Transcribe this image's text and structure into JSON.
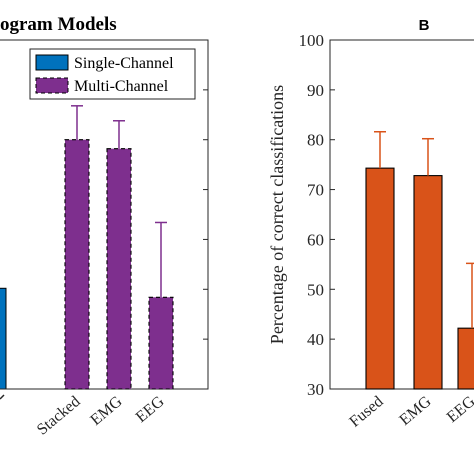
{
  "chart_data": [
    {
      "type": "bar",
      "title": "ogram Models",
      "ylabel": "",
      "xlabel": "",
      "ylim": [
        30,
        100
      ],
      "yticks": [
        30,
        40,
        50,
        60,
        70,
        80,
        90,
        100
      ],
      "categories": [
        "Stacked",
        "EMG",
        "EEG"
      ],
      "partial_left_bar": {
        "value": 50.2,
        "color": "#0072BD"
      },
      "series": [
        {
          "name": "Single-Channel",
          "color": "#0072BD",
          "edge": "solid",
          "values": [
            null,
            null,
            null
          ],
          "errors": [
            null,
            null,
            null
          ]
        },
        {
          "name": "Multi-Channel",
          "color": "#7E2F8E",
          "edge": "dashed",
          "values": [
            80.0,
            78.2,
            48.4
          ],
          "errors": [
            6.8,
            5.6,
            15.0
          ]
        }
      ],
      "legend_position": "top-right",
      "grid": false
    },
    {
      "type": "bar",
      "panel_label": "B",
      "title": "",
      "ylabel": "Percentage of correct classifications",
      "xlabel": "",
      "ylim": [
        30,
        100
      ],
      "yticks": [
        30,
        40,
        50,
        60,
        70,
        80,
        90,
        100
      ],
      "categories": [
        "Fused",
        "EMG",
        "EEG"
      ],
      "series": [
        {
          "name": "",
          "color": "#D95319",
          "values": [
            74.3,
            72.8,
            42.2
          ],
          "errors": [
            7.3,
            7.4,
            13.0
          ]
        }
      ],
      "grid": false
    }
  ]
}
